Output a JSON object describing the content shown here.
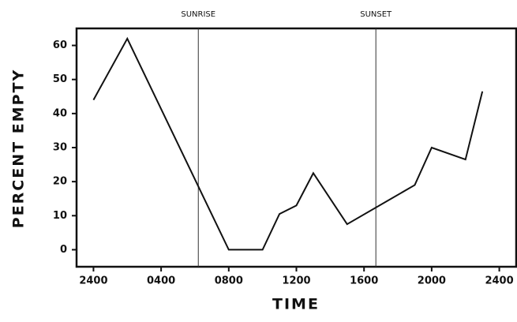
{
  "chart_data": {
    "type": "line",
    "x_label": "TIME",
    "y_label": "PERCENT EMPTY",
    "x": [
      0,
      2,
      8,
      10,
      11,
      12,
      13,
      15,
      19,
      20,
      22,
      23
    ],
    "series": [
      {
        "color": "#111111",
        "values": [
          44,
          62,
          0,
          0,
          10.5,
          13,
          22.5,
          7.5,
          19,
          30,
          26.5,
          46.5
        ]
      }
    ],
    "xlim": [
      -1,
      25
    ],
    "ylim": [
      -5,
      65
    ],
    "xticks": [
      {
        "value": 0,
        "label": "2400"
      },
      {
        "value": 4,
        "label": "0400"
      },
      {
        "value": 8,
        "label": "0800"
      },
      {
        "value": 12,
        "label": "1200"
      },
      {
        "value": 16,
        "label": "1600"
      },
      {
        "value": 20,
        "label": "2000"
      },
      {
        "value": 24,
        "label": "2400"
      }
    ],
    "yticks": [
      0,
      10,
      20,
      30,
      40,
      50,
      60
    ],
    "annotations": [
      {
        "x": 6.2,
        "text": "SUNRISE"
      },
      {
        "x": 16.7,
        "text": "SUNSET"
      }
    ]
  }
}
